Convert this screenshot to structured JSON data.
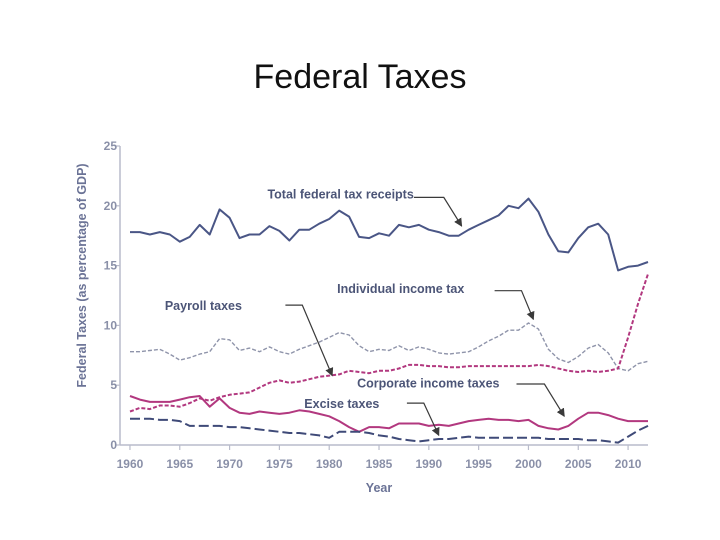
{
  "title": "Federal Taxes",
  "chart_data": {
    "type": "line",
    "xlabel": "Year",
    "ylabel": "Federal Taxes (as percentage of GDP)",
    "xlim": [
      1959,
      2012
    ],
    "ylim": [
      0,
      25
    ],
    "x_ticks": [
      1960,
      1965,
      1970,
      1975,
      1980,
      1985,
      1990,
      1995,
      2000,
      2005,
      2010
    ],
    "y_ticks": [
      0,
      5,
      10,
      15,
      20,
      25
    ],
    "grid": false,
    "colors": {
      "axis": "#b9bccb",
      "total": "#4a5686",
      "individual": "#8f94aa",
      "payroll": "#b2387f",
      "corporate": "#b2387f",
      "excise": "#3f4a78",
      "arrow": "#3a3a3a"
    },
    "series": [
      {
        "key": "total",
        "style": "solid",
        "x": [
          1960,
          1961,
          1962,
          1963,
          1964,
          1965,
          1966,
          1967,
          1968,
          1969,
          1970,
          1971,
          1972,
          1973,
          1974,
          1975,
          1976,
          1977,
          1978,
          1979,
          1980,
          1981,
          1982,
          1983,
          1984,
          1985,
          1986,
          1987,
          1988,
          1989,
          1990,
          1991,
          1992,
          1993,
          1994,
          1995,
          1996,
          1997,
          1998,
          1999,
          2000,
          2001,
          2002,
          2003,
          2004,
          2005,
          2006,
          2007,
          2008,
          2009,
          2010,
          2011,
          2012
        ],
        "y": [
          17.8,
          17.8,
          17.6,
          17.8,
          17.6,
          17.0,
          17.4,
          18.4,
          17.6,
          19.7,
          19.0,
          17.3,
          17.6,
          17.6,
          18.3,
          17.9,
          17.1,
          18.0,
          18.0,
          18.5,
          18.9,
          19.6,
          19.1,
          17.4,
          17.3,
          17.7,
          17.5,
          18.4,
          18.2,
          18.4,
          18.0,
          17.8,
          17.5,
          17.5,
          18.0,
          18.4,
          18.8,
          19.2,
          20.0,
          19.8,
          20.6,
          19.5,
          17.6,
          16.2,
          16.1,
          17.3,
          18.2,
          18.5,
          17.6,
          14.6,
          14.9,
          15.0,
          15.3
        ]
      },
      {
        "key": "individual",
        "style": "dashed",
        "x": [
          1960,
          1961,
          1962,
          1963,
          1964,
          1965,
          1966,
          1967,
          1968,
          1969,
          1970,
          1971,
          1972,
          1973,
          1974,
          1975,
          1976,
          1977,
          1978,
          1979,
          1980,
          1981,
          1982,
          1983,
          1984,
          1985,
          1986,
          1987,
          1988,
          1989,
          1990,
          1991,
          1992,
          1993,
          1994,
          1995,
          1996,
          1997,
          1998,
          1999,
          2000,
          2001,
          2002,
          2003,
          2004,
          2005,
          2006,
          2007,
          2008,
          2009,
          2010,
          2011,
          2012
        ],
        "y": [
          7.8,
          7.8,
          7.9,
          8.0,
          7.6,
          7.1,
          7.3,
          7.6,
          7.8,
          8.9,
          8.8,
          7.9,
          8.1,
          7.8,
          8.2,
          7.8,
          7.6,
          8.0,
          8.3,
          8.6,
          9.0,
          9.4,
          9.2,
          8.3,
          7.8,
          8.0,
          7.9,
          8.3,
          7.9,
          8.2,
          8.0,
          7.7,
          7.6,
          7.7,
          7.8,
          8.2,
          8.7,
          9.1,
          9.6,
          9.6,
          10.2,
          9.7,
          8.0,
          7.2,
          6.9,
          7.4,
          8.1,
          8.4,
          7.7,
          6.4,
          6.2,
          6.8,
          7.0
        ]
      },
      {
        "key": "payroll",
        "style": "dashed",
        "x": [
          1960,
          1961,
          1962,
          1963,
          1964,
          1965,
          1966,
          1967,
          1968,
          1969,
          1970,
          1971,
          1972,
          1973,
          1974,
          1975,
          1976,
          1977,
          1978,
          1979,
          1980,
          1981,
          1982,
          1983,
          1984,
          1985,
          1986,
          1987,
          1988,
          1989,
          1990,
          1991,
          1992,
          1993,
          1994,
          1995,
          1996,
          1997,
          1998,
          1999,
          2000,
          2001,
          2002,
          2003,
          2004,
          2005,
          2006,
          2007,
          2008,
          2009,
          2010,
          2011,
          2012
        ],
        "y": [
          2.8,
          3.1,
          3.0,
          3.3,
          3.3,
          3.2,
          3.5,
          3.9,
          3.7,
          4.0,
          4.2,
          4.3,
          4.4,
          4.8,
          5.2,
          5.4,
          5.2,
          5.3,
          5.5,
          5.7,
          5.8,
          5.9,
          6.2,
          6.1,
          6.0,
          6.2,
          6.2,
          6.4,
          6.7,
          6.7,
          6.6,
          6.6,
          6.5,
          6.5,
          6.6,
          6.6,
          6.6,
          6.6,
          6.6,
          6.6,
          6.6,
          6.7,
          6.6,
          6.4,
          6.2,
          6.1,
          6.2,
          6.1,
          6.2,
          6.4,
          9.0,
          11.8,
          14.3
        ]
      },
      {
        "key": "corporate",
        "style": "solid",
        "x": [
          1960,
          1961,
          1962,
          1963,
          1964,
          1965,
          1966,
          1967,
          1968,
          1969,
          1970,
          1971,
          1972,
          1973,
          1974,
          1975,
          1976,
          1977,
          1978,
          1979,
          1980,
          1981,
          1982,
          1983,
          1984,
          1985,
          1986,
          1987,
          1988,
          1989,
          1990,
          1991,
          1992,
          1993,
          1994,
          1995,
          1996,
          1997,
          1998,
          1999,
          2000,
          2001,
          2002,
          2003,
          2004,
          2005,
          2006,
          2007,
          2008,
          2009,
          2010,
          2011,
          2012
        ],
        "y": [
          4.1,
          3.8,
          3.6,
          3.6,
          3.6,
          3.8,
          4.0,
          4.1,
          3.2,
          3.9,
          3.1,
          2.7,
          2.6,
          2.8,
          2.7,
          2.6,
          2.7,
          2.9,
          2.8,
          2.6,
          2.4,
          2.0,
          1.5,
          1.1,
          1.5,
          1.5,
          1.4,
          1.8,
          1.8,
          1.8,
          1.6,
          1.7,
          1.6,
          1.8,
          2.0,
          2.1,
          2.2,
          2.1,
          2.1,
          2.0,
          2.1,
          1.6,
          1.4,
          1.3,
          1.6,
          2.2,
          2.7,
          2.7,
          2.5,
          2.2,
          2.0,
          2.0,
          2.0
        ]
      },
      {
        "key": "excise",
        "style": "long-dash",
        "x": [
          1960,
          1961,
          1962,
          1963,
          1964,
          1965,
          1966,
          1967,
          1968,
          1969,
          1970,
          1971,
          1972,
          1973,
          1974,
          1975,
          1976,
          1977,
          1978,
          1979,
          1980,
          1981,
          1982,
          1983,
          1984,
          1985,
          1986,
          1987,
          1988,
          1989,
          1990,
          1991,
          1992,
          1993,
          1994,
          1995,
          1996,
          1997,
          1998,
          1999,
          2000,
          2001,
          2002,
          2003,
          2004,
          2005,
          2006,
          2007,
          2008,
          2009,
          2010,
          2011,
          2012
        ],
        "y": [
          2.2,
          2.2,
          2.2,
          2.1,
          2.1,
          2.0,
          1.6,
          1.6,
          1.6,
          1.6,
          1.5,
          1.5,
          1.4,
          1.3,
          1.2,
          1.1,
          1.0,
          1.0,
          0.9,
          0.8,
          0.6,
          1.1,
          1.1,
          1.1,
          1.0,
          0.8,
          0.7,
          0.5,
          0.4,
          0.3,
          0.4,
          0.5,
          0.5,
          0.6,
          0.7,
          0.6,
          0.6,
          0.6,
          0.6,
          0.6,
          0.6,
          0.6,
          0.5,
          0.5,
          0.5,
          0.5,
          0.4,
          0.4,
          0.3,
          0.2,
          0.7,
          1.2,
          1.6
        ]
      }
    ],
    "annotations": [
      {
        "key": "total",
        "text": "Total federal tax receipts",
        "label_x": 1973.8,
        "label_y": 20.6,
        "path_x": [
          1988.5,
          1991.5,
          1993.3
        ],
        "path_y": [
          20.7,
          20.7,
          18.3
        ]
      },
      {
        "key": "individual",
        "text": "Individual income tax",
        "label_x": 1980.8,
        "label_y": 12.7,
        "path_x": [
          1996.6,
          1999.3,
          2000.5
        ],
        "path_y": [
          12.9,
          12.9,
          10.5
        ]
      },
      {
        "key": "payroll",
        "text": "Payroll taxes",
        "label_x": 1963.5,
        "label_y": 11.3,
        "path_x": [
          1975.6,
          1977.3,
          1980.3
        ],
        "path_y": [
          11.7,
          11.7,
          5.8
        ]
      },
      {
        "key": "corporate",
        "text": "Corporate income taxes",
        "label_x": 1982.8,
        "label_y": 4.8,
        "path_x": [
          1998.8,
          2001.6,
          2003.6
        ],
        "path_y": [
          5.1,
          5.1,
          2.4
        ]
      },
      {
        "key": "excise",
        "text": "Excise taxes",
        "label_x": 1977.5,
        "label_y": 3.1,
        "path_x": [
          1987.8,
          1989.5,
          1991.0
        ],
        "path_y": [
          3.5,
          3.5,
          0.8
        ]
      }
    ]
  }
}
